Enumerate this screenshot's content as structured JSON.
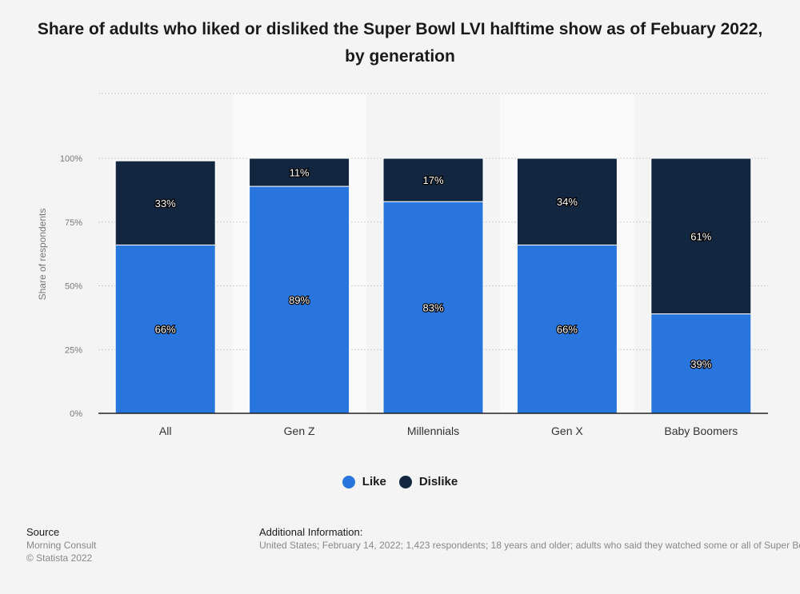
{
  "chart_data": {
    "type": "bar",
    "stacked": true,
    "title": "Share of adults who liked or disliked the Super Bowl LVI halftime show as of Febuary 2022, by generation",
    "categories": [
      "All",
      "Gen Z",
      "Millennials",
      "Gen X",
      "Baby Boomers"
    ],
    "series": [
      {
        "name": "Like",
        "color": "#2876dd",
        "values": [
          66,
          89,
          83,
          66,
          39
        ],
        "labels": [
          "66%",
          "89%",
          "83%",
          "66%",
          "39%"
        ]
      },
      {
        "name": "Dislike",
        "color": "#12263f",
        "values": [
          33,
          11,
          17,
          34,
          61
        ],
        "labels": [
          "33%",
          "11%",
          "17%",
          "34%",
          "61%"
        ]
      }
    ],
    "ylabel": "Share of respondents",
    "xlabel": "",
    "ylim": [
      0,
      100
    ],
    "yticks": [
      "0%",
      "25%",
      "50%",
      "75%",
      "100%"
    ],
    "grid": true,
    "legend_position": "bottom"
  },
  "legend": {
    "like_label": "Like",
    "dislike_label": "Dislike",
    "like_color": "#2876dd",
    "dislike_color": "#12263f"
  },
  "source": {
    "heading": "Source",
    "line1": "Morning Consult",
    "line2": "© Statista 2022"
  },
  "additional_info": {
    "heading": "Additional Information:",
    "text": "United States; February 14, 2022; 1,423 respondents; 18 years and older; adults who said they watched some or all of Super Bowl LVI"
  }
}
